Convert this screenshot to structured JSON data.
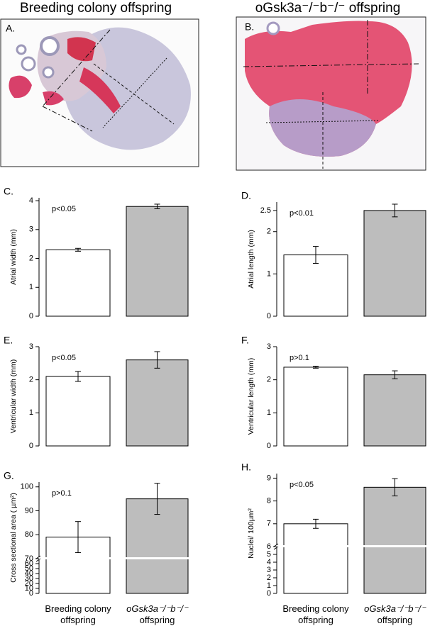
{
  "header": {
    "left_title": "Breeding colony offspring",
    "right_title": "oGsk3a⁻/⁻b⁻/⁻ offspring"
  },
  "images": [
    {
      "label": "A."
    },
    {
      "label": "B."
    }
  ],
  "chart_data": [
    {
      "type": "bar",
      "panel": "C.",
      "ylabel": "Atrial width (mm)",
      "annotation": "p<0.05",
      "values": [
        2.3,
        3.8
      ],
      "errors": [
        0.05,
        0.08
      ],
      "colors": [
        "#ffffff",
        "#bdbdbd"
      ],
      "ylim": [
        0,
        4.1
      ],
      "yticks": [
        0,
        1,
        2,
        3,
        4
      ]
    },
    {
      "type": "bar",
      "panel": "D.",
      "ylabel": "Atrial length (mm)",
      "annotation": "p<0.01",
      "values": [
        1.45,
        2.5
      ],
      "errors": [
        0.2,
        0.15
      ],
      "colors": [
        "#ffffff",
        "#bdbdbd"
      ],
      "ylim": [
        0,
        2.7
      ],
      "yticks": [
        0,
        1,
        2,
        2.5
      ]
    },
    {
      "type": "bar",
      "panel": "E.",
      "ylabel": "Ventricular width (mm)",
      "annotation": "p<0.05",
      "values": [
        2.1,
        2.6
      ],
      "errors": [
        0.15,
        0.25
      ],
      "colors": [
        "#ffffff",
        "#bdbdbd"
      ],
      "ylim": [
        0,
        3
      ],
      "yticks": [
        0,
        1,
        2,
        3
      ]
    },
    {
      "type": "bar",
      "panel": "F.",
      "ylabel": "Ventricular length (mm)",
      "annotation": "p>0.1",
      "values": [
        2.38,
        2.15
      ],
      "errors": [
        0.03,
        0.12
      ],
      "colors": [
        "#ffffff",
        "#bdbdbd"
      ],
      "ylim": [
        0,
        3
      ],
      "yticks": [
        0,
        1,
        2,
        3
      ]
    },
    {
      "type": "bar",
      "panel": "G.",
      "ylabel": "Cross sectional area ( µm²)",
      "annotation": "p>0.1",
      "categories": [
        "Breeding colony offspring",
        "oGsk3a⁻/⁻b⁻/⁻ offspring"
      ],
      "values": [
        79,
        95
      ],
      "errors": [
        6.5,
        6.5
      ],
      "colors": [
        "#ffffff",
        "#bdbdbd"
      ],
      "ylim": [
        0,
        102
      ],
      "yticks": [
        0,
        10,
        20,
        30,
        40,
        50,
        60,
        70,
        80,
        90,
        100
      ],
      "axis_break": 70
    },
    {
      "type": "bar",
      "panel": "H.",
      "ylabel": "Nuclei/ 100µm²",
      "annotation": "p<0.05",
      "categories": [
        "Breeding colony offspring",
        "oGsk3a⁻/⁻b⁻/⁻ offspring"
      ],
      "values": [
        7,
        8.6
      ],
      "errors": [
        0.2,
        0.38
      ],
      "colors": [
        "#ffffff",
        "#bdbdbd"
      ],
      "ylim": [
        0,
        9.2
      ],
      "yticks": [
        0,
        1,
        2,
        3,
        4,
        5,
        6,
        7,
        8,
        9
      ],
      "axis_break": 6
    }
  ]
}
